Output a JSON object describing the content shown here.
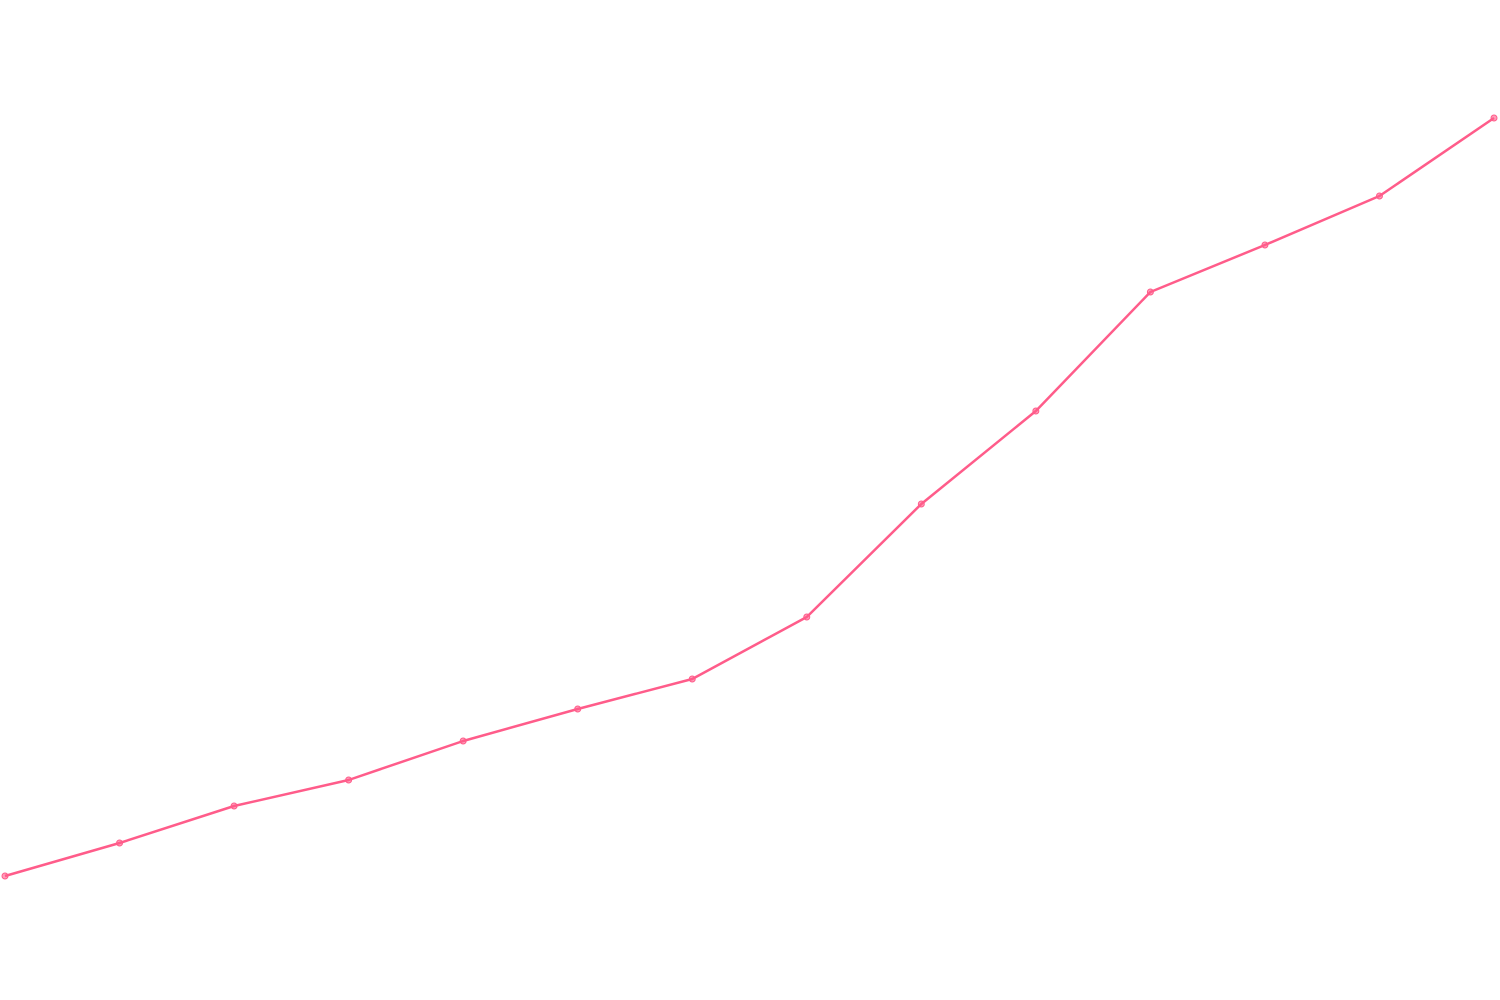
{
  "chart_data": {
    "type": "line",
    "title": "",
    "xlabel": "",
    "ylabel": "",
    "x": [
      0,
      1,
      2,
      3,
      4,
      5,
      6,
      7,
      8,
      9,
      10,
      11,
      12,
      13
    ],
    "series": [
      {
        "values": [
          12.4,
          15.7,
          19.4,
          22.0,
          25.9,
          29.1,
          32.1,
          38.3,
          49.6,
          58.9,
          70.8,
          75.5,
          80.4,
          88.2
        ]
      }
    ],
    "ylim": [
      0,
      100
    ],
    "grid": false,
    "axes_visible": false,
    "markers": true,
    "color": "#ff5c8a"
  }
}
